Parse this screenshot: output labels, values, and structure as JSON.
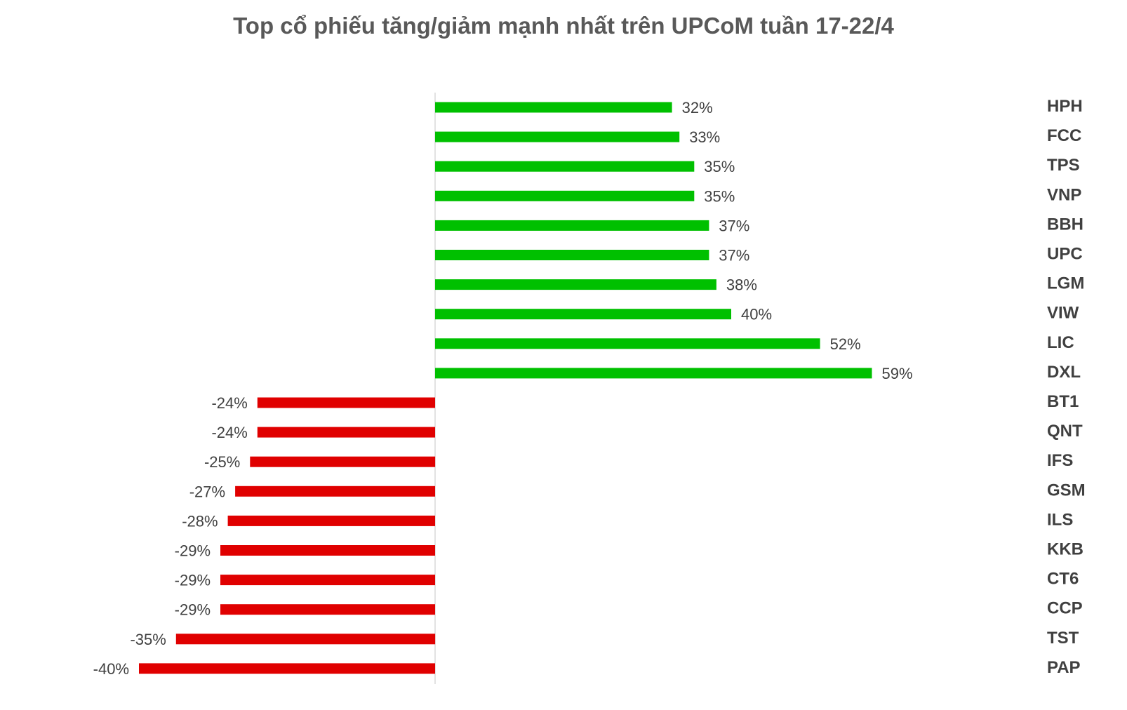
{
  "chart_data": {
    "type": "bar",
    "orientation": "horizontal",
    "title": "Top cổ phiếu tăng/giảm mạnh nhất trên UPCoM tuần 17-22/4",
    "xlabel": "",
    "ylabel": "",
    "value_suffix": "%",
    "grid": false,
    "legend": "none",
    "xlim": [
      -40,
      59
    ],
    "positive_color": "#00C000",
    "negative_color": "#E00000",
    "categories": [
      "HPH",
      "FCC",
      "TPS",
      "VNP",
      "BBH",
      "UPC",
      "LGM",
      "VIW",
      "LIC",
      "DXL",
      "BT1",
      "QNT",
      "IFS",
      "GSM",
      "ILS",
      "KKB",
      "CT6",
      "CCP",
      "TST",
      "PAP"
    ],
    "values": [
      32,
      33,
      35,
      35,
      37,
      37,
      38,
      40,
      52,
      59,
      -24,
      -24,
      -25,
      -27,
      -28,
      -29,
      -29,
      -29,
      -35,
      -40
    ],
    "value_labels": [
      "32%",
      "33%",
      "35%",
      "35%",
      "37%",
      "37%",
      "38%",
      "40%",
      "52%",
      "59%",
      "-24%",
      "-24%",
      "-25%",
      "-27%",
      "-28%",
      "-29%",
      "-29%",
      "-29%",
      "-35%",
      "-40%"
    ]
  }
}
